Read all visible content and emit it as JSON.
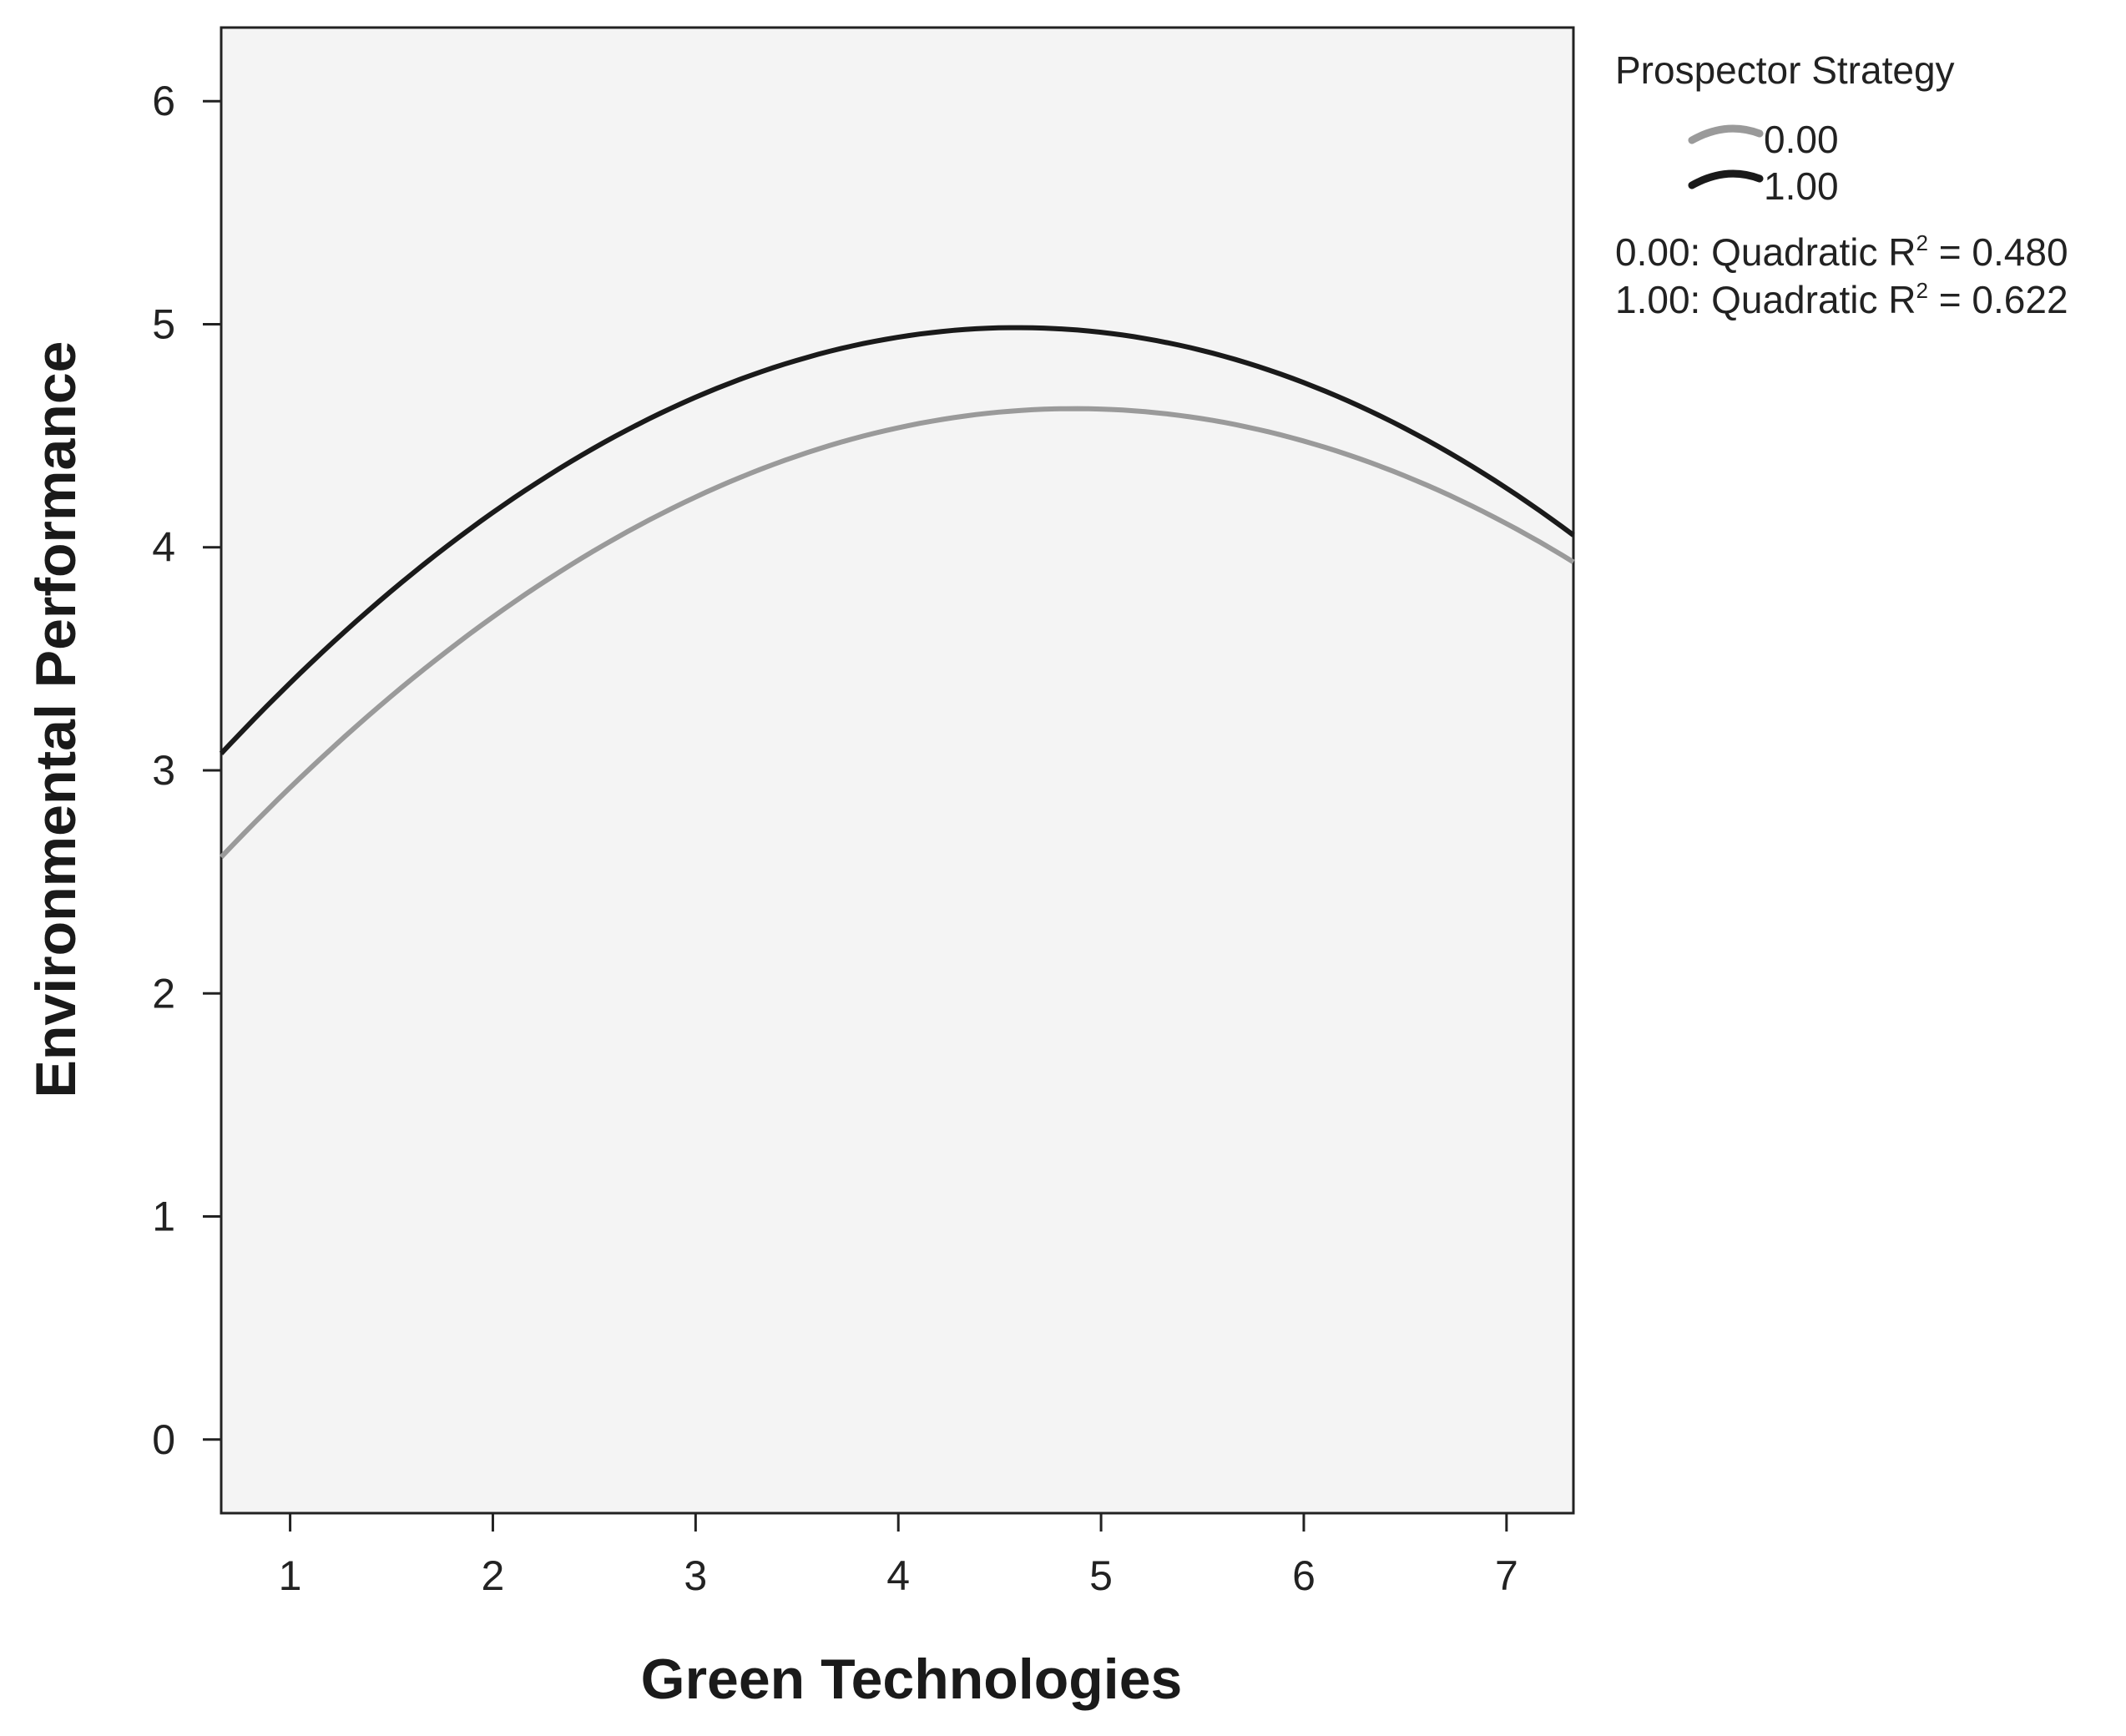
{
  "chart_data": {
    "type": "line",
    "title": "",
    "xlabel": "Green Technologies",
    "ylabel": "Environmental Performance",
    "xlim": [
      0.66,
      7.33
    ],
    "ylim": [
      -0.33,
      6.33
    ],
    "xticks": [
      "1",
      "2",
      "3",
      "4",
      "5",
      "6",
      "7"
    ],
    "yticks": [
      "0",
      "1",
      "2",
      "3",
      "4",
      "5",
      "6"
    ],
    "grid": false,
    "legend": {
      "title": "Prospector Strategy",
      "placement": "right",
      "entries": [
        {
          "label": "0.00",
          "color": "#9a9a9a"
        },
        {
          "label": "1.00",
          "color": "#1a1a1a"
        }
      ]
    },
    "fit_labels": [
      {
        "prefix": "0.00: Quadratic R",
        "sup": "2",
        "suffix": " = 0.480"
      },
      {
        "prefix": "1.00: Quadratic R",
        "sup": "2",
        "suffix": " = 0.622"
      }
    ],
    "series": [
      {
        "name": "0.00",
        "color": "#9a9a9a",
        "fit": "quadratic",
        "x": [
          0.66,
          1,
          2,
          3,
          4,
          4.8,
          6,
          7,
          7.33
        ],
        "y": [
          2.62,
          2.93,
          3.66,
          4.22,
          4.55,
          4.63,
          4.47,
          4.12,
          3.92
        ]
      },
      {
        "name": "1.00",
        "color": "#1a1a1a",
        "fit": "quadratic",
        "x": [
          0.66,
          1,
          2,
          3,
          4,
          4.6,
          6,
          7,
          7.33
        ],
        "y": [
          3.08,
          3.4,
          4.14,
          4.66,
          4.94,
          5.01,
          4.73,
          4.28,
          4.04
        ]
      }
    ]
  }
}
